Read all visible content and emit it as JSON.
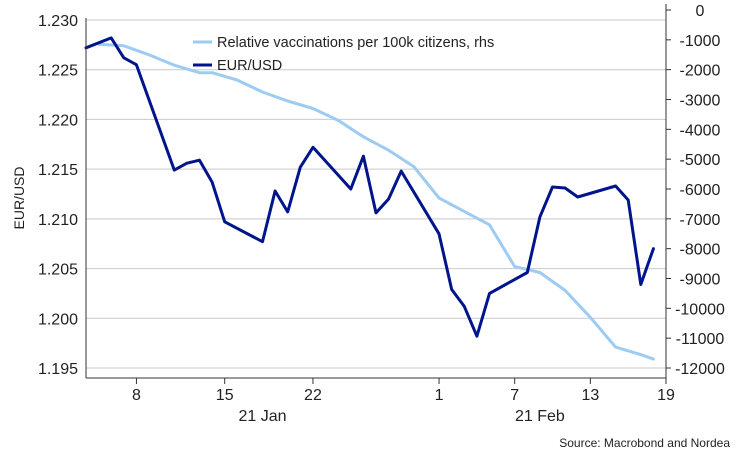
{
  "chart_data": {
    "type": "line",
    "xlabel": "",
    "ylabel_left": "EUR/USD",
    "ylabel_right": "",
    "left_axis": {
      "min": 1.195,
      "max": 1.23,
      "ticks": [
        "1.230",
        "1.225",
        "1.220",
        "1.215",
        "1.210",
        "1.205",
        "1.200",
        "1.195"
      ]
    },
    "right_axis": {
      "min": -12000,
      "max": 0,
      "ticks": [
        "0",
        "-1000",
        "-2000",
        "-3000",
        "-4000",
        "-5000",
        "-6000",
        "-7000",
        "-8000",
        "-9000",
        "-10000",
        "-11000",
        "-12000"
      ]
    },
    "x_ticks": [
      {
        "label": "8",
        "date": "2021-01-08"
      },
      {
        "label": "15",
        "date": "2021-01-15"
      },
      {
        "label": "22",
        "date": "2021-01-22"
      },
      {
        "label": "1",
        "date": "2021-02-01"
      },
      {
        "label": "7",
        "date": "2021-02-07"
      },
      {
        "label": "13",
        "date": "2021-02-13"
      },
      {
        "label": "19",
        "date": "2021-02-19"
      }
    ],
    "month_labels": [
      {
        "label": "21 Jan",
        "date": "2021-01-18"
      },
      {
        "label": "21 Feb",
        "date": "2021-02-09"
      }
    ],
    "x_range": [
      "2021-01-04T00:00",
      "2021-02-19T00:00"
    ],
    "grid": true,
    "legend_position": "top-center",
    "series": [
      {
        "name": "Relative vaccinations per 100k citizens, rhs",
        "axis": "right",
        "color": "#9ecbf2",
        "points": [
          [
            "2021-01-05",
            -1150
          ],
          [
            "2021-01-07",
            -1200
          ],
          [
            "2021-01-09",
            -1500
          ],
          [
            "2021-01-11",
            -1850
          ],
          [
            "2021-01-13",
            -2100
          ],
          [
            "2021-01-14",
            -2100
          ],
          [
            "2021-01-16",
            -2350
          ],
          [
            "2021-01-18",
            -2750
          ],
          [
            "2021-01-20",
            -3050
          ],
          [
            "2021-01-22",
            -3300
          ],
          [
            "2021-01-24",
            -3700
          ],
          [
            "2021-01-26",
            -4250
          ],
          [
            "2021-01-28",
            -4700
          ],
          [
            "2021-01-30",
            -5250
          ],
          [
            "2021-02-01",
            -6300
          ],
          [
            "2021-02-03",
            -6750
          ],
          [
            "2021-02-05",
            -7200
          ],
          [
            "2021-02-07",
            -8600
          ],
          [
            "2021-02-09",
            -8800
          ],
          [
            "2021-02-11",
            -9400
          ],
          [
            "2021-02-13",
            -10300
          ],
          [
            "2021-02-15",
            -11300
          ],
          [
            "2021-02-17",
            -11550
          ],
          [
            "2021-02-18",
            -11700
          ]
        ]
      },
      {
        "name": "EUR/USD",
        "axis": "left",
        "color": "#00148c",
        "points": [
          [
            "2021-01-04",
            1.2272
          ],
          [
            "2021-01-06",
            1.2282
          ],
          [
            "2021-01-07",
            1.2262
          ],
          [
            "2021-01-08",
            1.2255
          ],
          [
            "2021-01-11",
            1.2149
          ],
          [
            "2021-01-12",
            1.2156
          ],
          [
            "2021-01-13",
            1.2159
          ],
          [
            "2021-01-14",
            1.2137
          ],
          [
            "2021-01-15",
            1.2097
          ],
          [
            "2021-01-18",
            1.2077
          ],
          [
            "2021-01-19",
            1.2128
          ],
          [
            "2021-01-20",
            1.2107
          ],
          [
            "2021-01-21",
            1.2152
          ],
          [
            "2021-01-22",
            1.2172
          ],
          [
            "2021-01-25",
            1.213
          ],
          [
            "2021-01-26",
            1.2163
          ],
          [
            "2021-01-27",
            1.2106
          ],
          [
            "2021-01-28",
            1.212
          ],
          [
            "2021-01-29",
            1.2148
          ],
          [
            "2021-02-01",
            1.2085
          ],
          [
            "2021-02-02",
            1.2029
          ],
          [
            "2021-02-03",
            1.2012
          ],
          [
            "2021-02-04",
            1.1982
          ],
          [
            "2021-02-05",
            1.2025
          ],
          [
            "2021-02-08",
            1.2046
          ],
          [
            "2021-02-09",
            1.2102
          ],
          [
            "2021-02-10",
            1.2132
          ],
          [
            "2021-02-11",
            1.2131
          ],
          [
            "2021-02-12",
            1.2122
          ],
          [
            "2021-02-15",
            1.2133
          ],
          [
            "2021-02-16",
            1.2119
          ],
          [
            "2021-02-17",
            1.2034
          ],
          [
            "2021-02-18",
            1.207
          ]
        ]
      }
    ]
  },
  "source": "Source: Macrobond and Nordea"
}
